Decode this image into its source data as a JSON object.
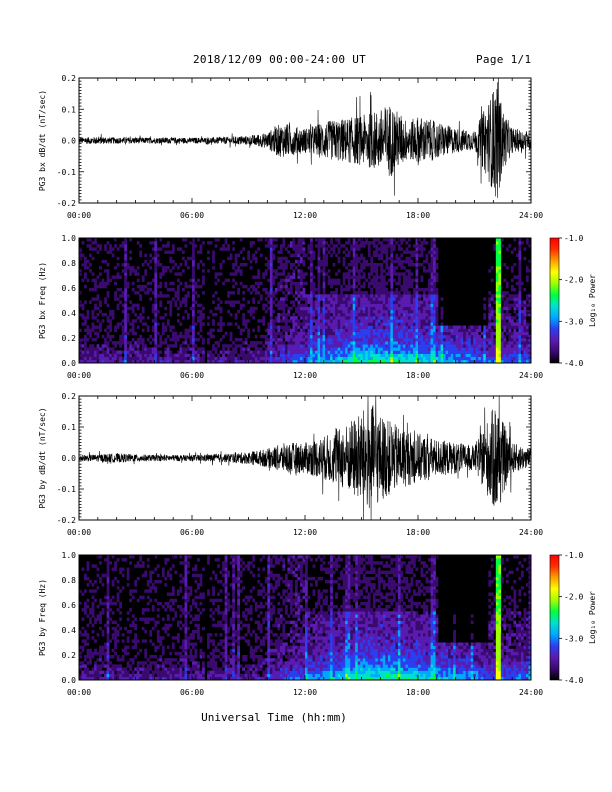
{
  "header": {
    "title": "2018/12/09  00:00-24:00 UT",
    "page": "Page 1/1"
  },
  "x_axis_title": "Universal Time (hh:mm)",
  "colors": {
    "trace": "#000000",
    "spectrogram_background": "#000000",
    "colorbar": [
      "#000000",
      "#3a0a6e",
      "#5a1bb0",
      "#2a3ff0",
      "#00a8ff",
      "#00e0d0",
      "#00ff40",
      "#a0ff00",
      "#ffff00",
      "#ffa000",
      "#ff3000",
      "#ff0000"
    ]
  },
  "chart_data": [
    {
      "type": "line",
      "ylabel": "PG3 bx dB/dt (nT/sec)",
      "xlim": [
        "00:00",
        "24:00"
      ],
      "ylim": [
        -0.2,
        0.2
      ],
      "x_ticks": [
        "00:00",
        "06:00",
        "12:00",
        "18:00",
        "24:00"
      ],
      "y_ticks": [
        "-0.2",
        "-0.1",
        "0.0",
        "0.1",
        "0.2"
      ],
      "envelope": {
        "x_hours": [
          0,
          1,
          2,
          3,
          4,
          5,
          6,
          7,
          8,
          9,
          10,
          10.5,
          11,
          11.5,
          12,
          13,
          14,
          15,
          16,
          16.5,
          17,
          17.5,
          18,
          19,
          20,
          21,
          21.9,
          22.2,
          22.5,
          23,
          24
        ],
        "amplitude": [
          0.01,
          0.012,
          0.01,
          0.01,
          0.009,
          0.01,
          0.009,
          0.01,
          0.012,
          0.015,
          0.025,
          0.05,
          0.055,
          0.045,
          0.04,
          0.06,
          0.07,
          0.08,
          0.1,
          0.12,
          0.09,
          0.06,
          0.08,
          0.06,
          0.04,
          0.03,
          0.15,
          0.2,
          0.1,
          0.04,
          0.03
        ]
      }
    },
    {
      "type": "heatmap",
      "ylabel": "PG3 bx Freq (Hz)",
      "xlim": [
        "00:00",
        "24:00"
      ],
      "ylim": [
        0.0,
        1.0
      ],
      "x_ticks": [
        "00:00",
        "06:00",
        "12:00",
        "18:00",
        "24:00"
      ],
      "y_ticks": [
        "0.0",
        "0.2",
        "0.4",
        "0.6",
        "0.8",
        "1.0"
      ],
      "colorbar": {
        "label": "Log₁₀ Power",
        "ticks": [
          "-1.0",
          "-2.0",
          "-3.0",
          "-4.0"
        ],
        "range": [
          -4.0,
          -1.0
        ]
      }
    },
    {
      "type": "line",
      "ylabel": "PG3 by dB/dt (nT/sec)",
      "xlim": [
        "00:00",
        "24:00"
      ],
      "ylim": [
        -0.2,
        0.2
      ],
      "x_ticks": [
        "00:00",
        "06:00",
        "12:00",
        "18:00",
        "24:00"
      ],
      "y_ticks": [
        "-0.2",
        "-0.1",
        "0.0",
        "0.1",
        "0.2"
      ],
      "envelope": {
        "x_hours": [
          0,
          1,
          2,
          3,
          4,
          5,
          6,
          7,
          8,
          9,
          10,
          10.5,
          11,
          11.5,
          12,
          13,
          14,
          15,
          15.5,
          16,
          17,
          18,
          19,
          20,
          21,
          21.9,
          22.2,
          22.5,
          23,
          24
        ],
        "amplitude": [
          0.01,
          0.012,
          0.015,
          0.012,
          0.01,
          0.01,
          0.01,
          0.012,
          0.015,
          0.02,
          0.03,
          0.04,
          0.05,
          0.05,
          0.05,
          0.07,
          0.1,
          0.15,
          0.18,
          0.14,
          0.1,
          0.08,
          0.06,
          0.05,
          0.04,
          0.15,
          0.2,
          0.12,
          0.05,
          0.03
        ]
      }
    },
    {
      "type": "heatmap",
      "ylabel": "PG3 by Freq (Hz)",
      "xlim": [
        "00:00",
        "24:00"
      ],
      "ylim": [
        0.0,
        1.0
      ],
      "x_ticks": [
        "00:00",
        "06:00",
        "12:00",
        "18:00",
        "24:00"
      ],
      "y_ticks": [
        "0.0",
        "0.2",
        "0.4",
        "0.6",
        "0.8",
        "1.0"
      ],
      "colorbar": {
        "label": "Log₁₀ Power",
        "ticks": [
          "-1.0",
          "-2.0",
          "-3.0",
          "-4.0"
        ],
        "range": [
          -4.0,
          -1.0
        ]
      }
    }
  ]
}
